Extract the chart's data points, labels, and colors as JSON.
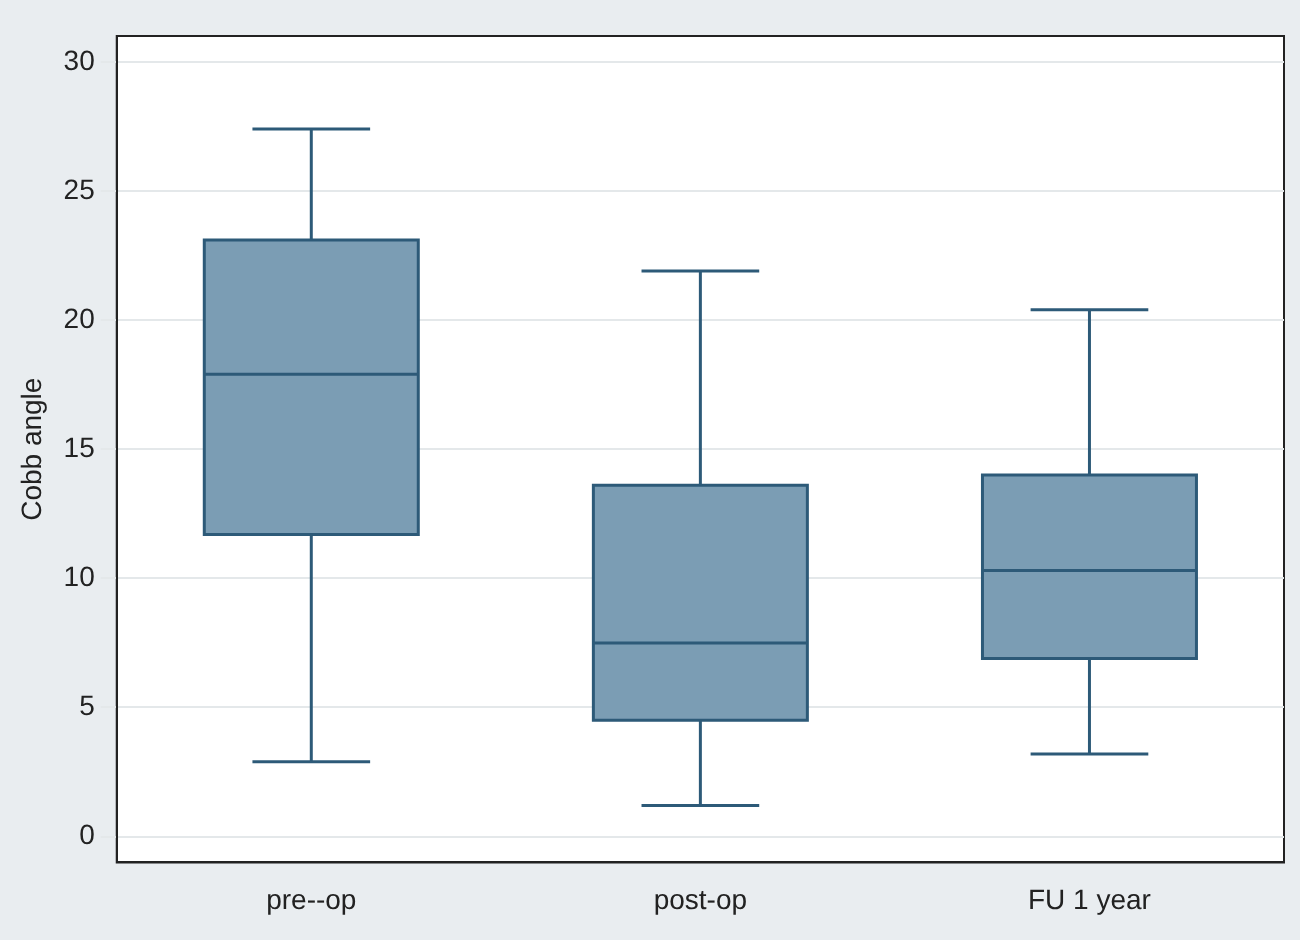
{
  "chart_data": {
    "type": "box",
    "ylabel": "Cobb angle",
    "categories": [
      "pre--op",
      "post-op",
      "FU 1 year"
    ],
    "color": "#7b9db4",
    "boxes": [
      {
        "low": 2.9,
        "q1": 11.7,
        "median": 17.9,
        "q3": 23.1,
        "high": 27.4
      },
      {
        "low": 1.2,
        "q1": 4.5,
        "median": 7.5,
        "q3": 13.6,
        "high": 21.9
      },
      {
        "low": 3.2,
        "q1": 6.9,
        "median": 10.3,
        "q3": 14.0,
        "high": 20.4
      }
    ],
    "ylim": [
      -1,
      31
    ],
    "yticks": [
      0,
      5,
      10,
      15,
      20,
      25,
      30
    ],
    "grid": "y",
    "legend": false
  }
}
